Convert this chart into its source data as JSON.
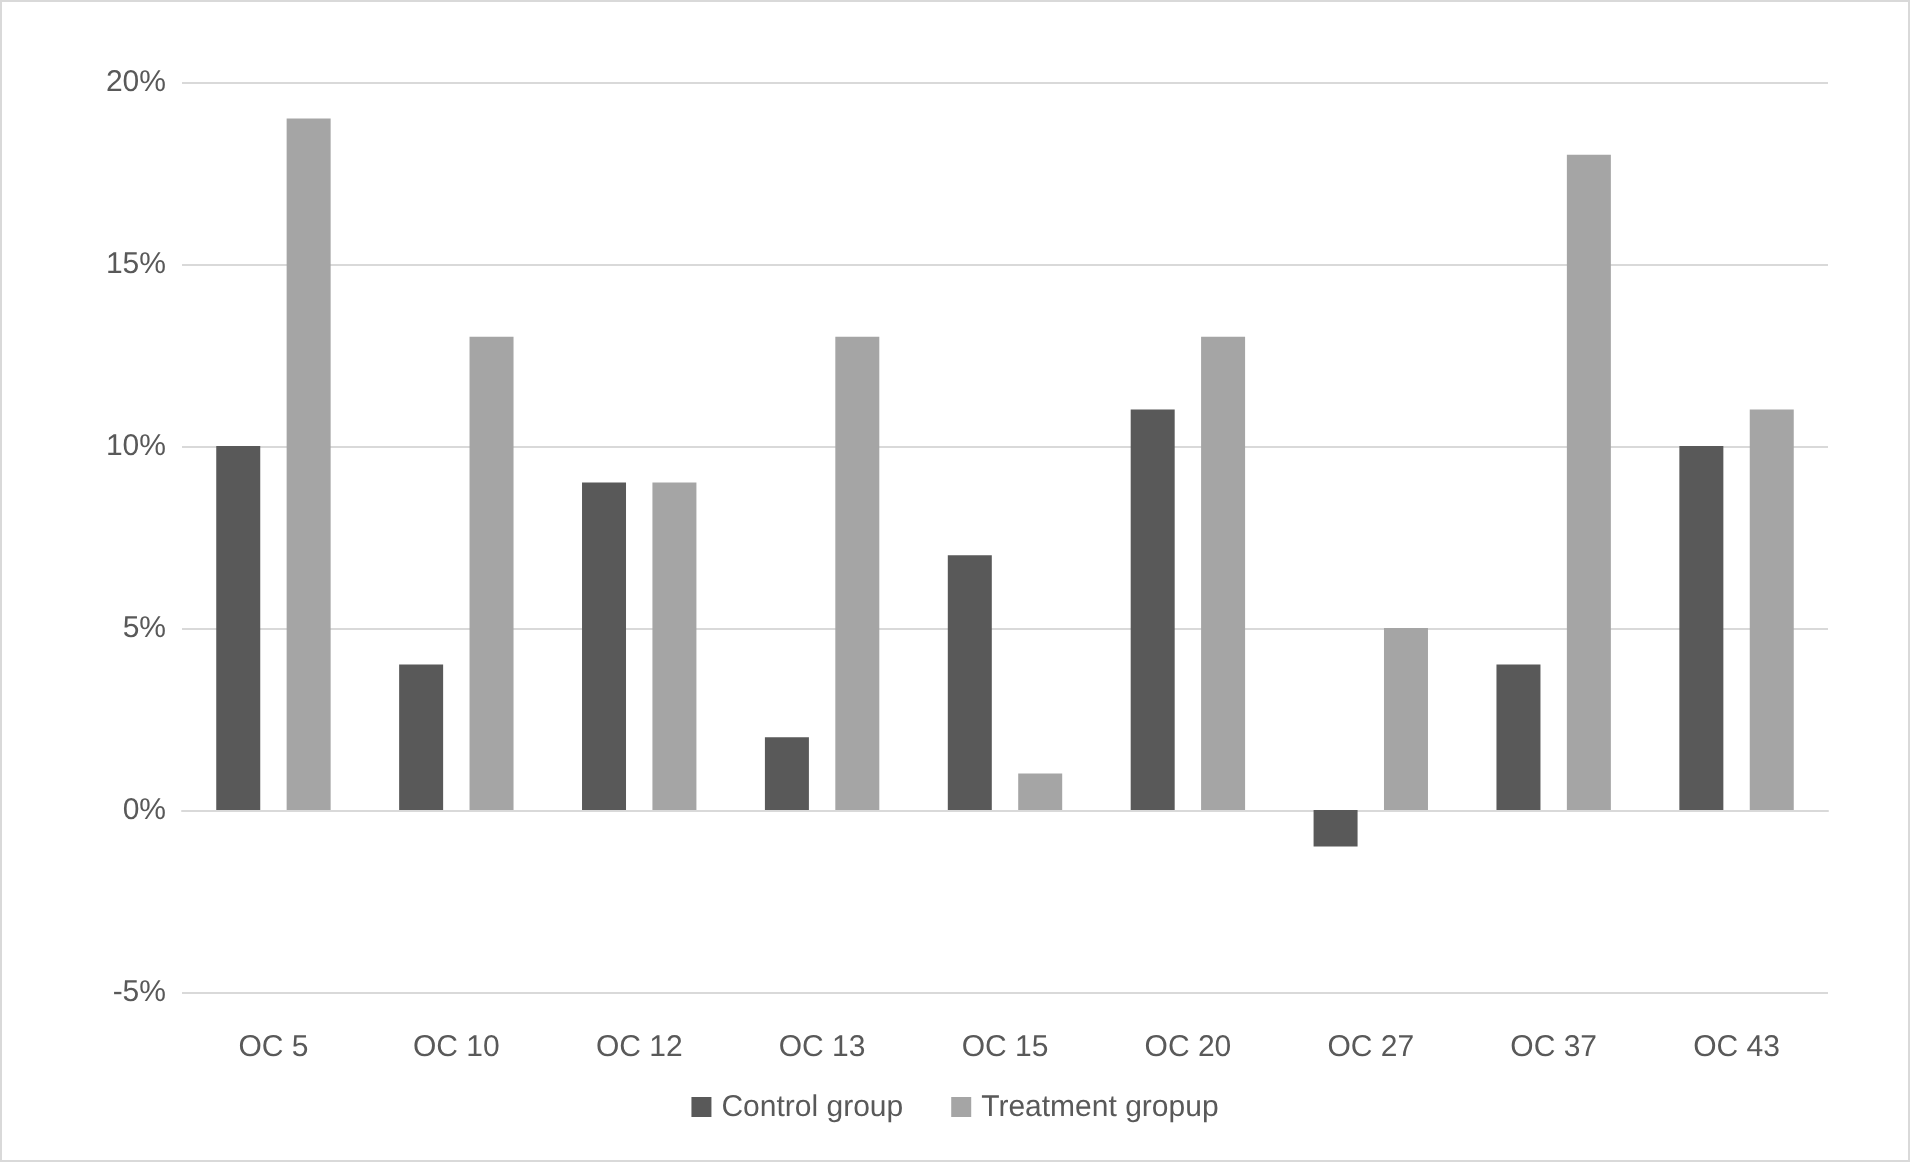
{
  "chart_data": {
    "type": "bar",
    "categories": [
      "OC 5",
      "OC 10",
      "OC 12",
      "OC 13",
      "OC 15",
      "OC 20",
      "OC 27",
      "OC 37",
      "OC 43"
    ],
    "series": [
      {
        "name": "Control group",
        "color": "#595959",
        "values": [
          10,
          4,
          9,
          2,
          7,
          11,
          -1,
          4,
          10
        ]
      },
      {
        "name": "Treatment gropup",
        "color": "#a5a5a5",
        "values": [
          19,
          13,
          9,
          13,
          1,
          13,
          5,
          18,
          11
        ]
      }
    ],
    "ylim": [
      -5,
      20
    ],
    "yticks": [
      {
        "value": -5,
        "label": "-5%"
      },
      {
        "value": 0,
        "label": "0%"
      },
      {
        "value": 5,
        "label": "5%"
      },
      {
        "value": 10,
        "label": "10%"
      },
      {
        "value": 15,
        "label": "15%"
      },
      {
        "value": 20,
        "label": "20%"
      }
    ],
    "grid": "y",
    "legend": "bottom"
  }
}
